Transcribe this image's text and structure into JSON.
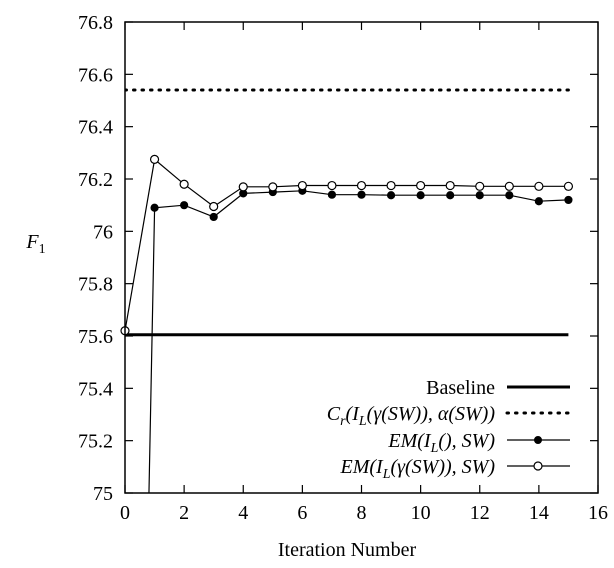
{
  "chart_data": {
    "type": "line",
    "title": "",
    "xlabel": "Iteration Number",
    "ylabel": "F",
    "ylabel_subscript": "1",
    "xlim": [
      0,
      16
    ],
    "ylim": [
      75,
      76.8
    ],
    "xticks": [
      0,
      2,
      4,
      6,
      8,
      10,
      12,
      14,
      16
    ],
    "yticks": [
      75,
      75.2,
      75.4,
      75.6,
      75.8,
      76,
      76.2,
      76.4,
      76.6,
      76.8
    ],
    "xtick_labels": [
      "0",
      "2",
      "4",
      "6",
      "8",
      "10",
      "12",
      "14",
      "16"
    ],
    "ytick_labels": [
      "75",
      "75.2",
      "75.4",
      "75.6",
      "75.8",
      "76",
      "76.2",
      "76.4",
      "76.6",
      "76.8"
    ],
    "grid": false,
    "legend_position": "bottom-right",
    "series": [
      {
        "name": "Baseline",
        "style": "solid-thick",
        "x": [
          0,
          15
        ],
        "y": [
          75.605,
          75.605
        ]
      },
      {
        "name_parts": {
          "pre": "C",
          "sub": "r",
          "mid1": "(I",
          "sub2": "L",
          "post": "(γ(SW)), α(SW))"
        },
        "style": "dotted",
        "x": [
          0,
          15
        ],
        "y": [
          76.54,
          76.54
        ]
      },
      {
        "name_parts": {
          "pre": "EM(I",
          "sub": "L",
          "post": "(), SW)"
        },
        "style": "filled-circle",
        "x": [
          0.8,
          1,
          2,
          3,
          4,
          5,
          6,
          7,
          8,
          9,
          10,
          11,
          12,
          13,
          14,
          15
        ],
        "y": [
          74.95,
          76.09,
          76.1,
          76.055,
          76.145,
          76.15,
          76.155,
          76.14,
          76.14,
          76.138,
          76.138,
          76.138,
          76.138,
          76.138,
          76.115,
          76.12
        ],
        "markers_from_index": 1
      },
      {
        "name_parts": {
          "pre": "EM(I",
          "sub": "L",
          "post": "(γ(SW)), SW)"
        },
        "style": "open-circle",
        "x": [
          0,
          1,
          2,
          3,
          4,
          5,
          6,
          7,
          8,
          9,
          10,
          11,
          12,
          13,
          14,
          15
        ],
        "y": [
          75.62,
          76.275,
          76.18,
          76.095,
          76.17,
          76.17,
          76.175,
          76.175,
          76.175,
          76.175,
          76.175,
          76.175,
          76.172,
          76.172,
          76.172,
          76.172
        ],
        "markers_from_index": 0
      }
    ]
  }
}
